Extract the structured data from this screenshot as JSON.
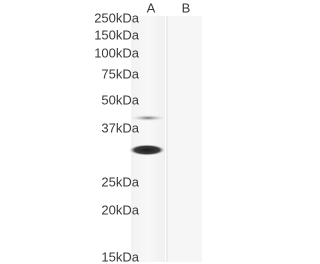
{
  "blot": {
    "lanes": [
      "A",
      "B"
    ],
    "markers": [
      "250kDa",
      "150kDa",
      "100kDa",
      "75kDa",
      "50kDa",
      "37kDa",
      "25kDa",
      "20kDa",
      "15kDa"
    ]
  }
}
